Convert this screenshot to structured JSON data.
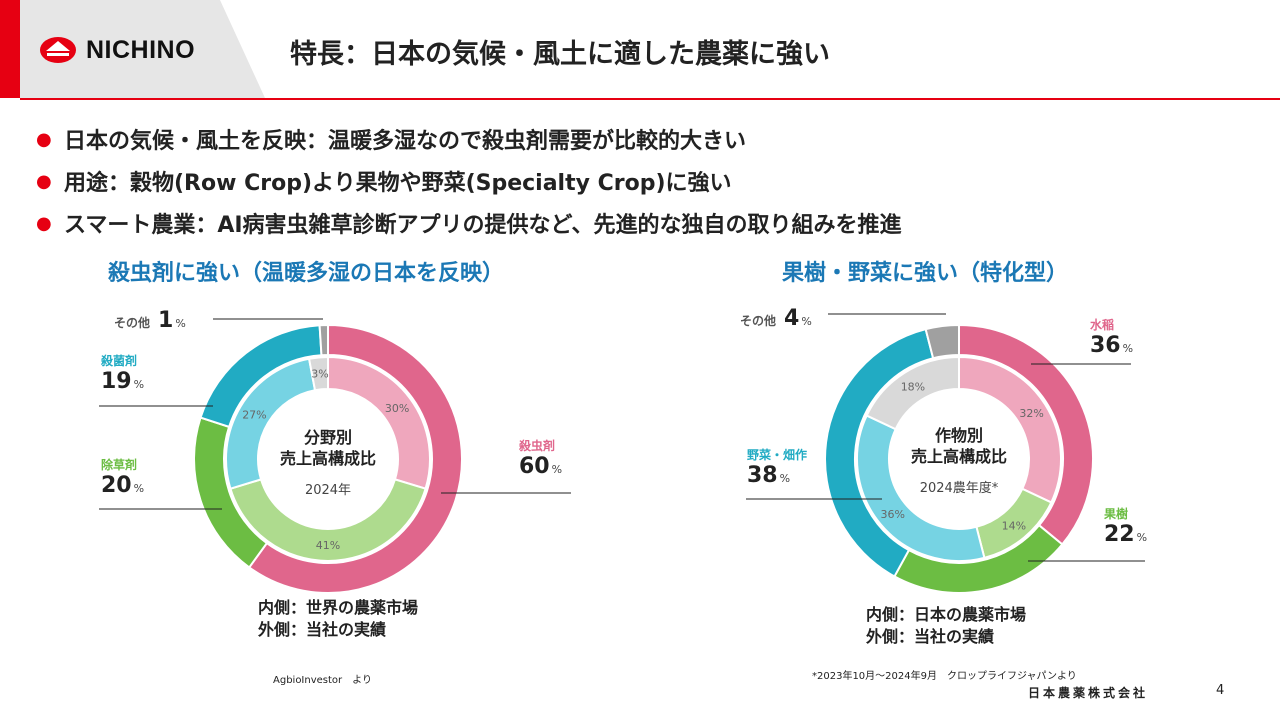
{
  "header": {
    "logo_text": "NICHINO",
    "title": "特長：日本の気候・風土に適した農薬に強い"
  },
  "bullets": [
    "日本の気候・風土を反映：温暖多湿なので殺虫剤需要が比較的大きい",
    "用途：穀物(Row Crop)より果物や野菜(Specialty Crop)に強い",
    "スマート農業：AI病害虫雑草診断アプリの提供など、先進的な独自の取り組みを推進"
  ],
  "bullet_marker": "●",
  "colors": {
    "brand_red": "#e60012",
    "title_blue": "#1b78b5",
    "pink": "#e0668c",
    "pink_light": "#efa7bd",
    "green": "#6cbd43",
    "green_light": "#aedb8e",
    "teal": "#21abc3",
    "teal_light": "#76d3e3",
    "gray": "#a0a0a0",
    "gray_light": "#d9d9d9"
  },
  "chart_data": [
    {
      "type": "pie",
      "variant": "nested-donut",
      "title": "殺虫剤に強い（温暖多湿の日本を反映）",
      "center_label_1": "分野別",
      "center_label_2": "売上高構成比",
      "center_sub": "2024年",
      "unit": "%",
      "outer": {
        "name": "当社の実績",
        "slices": [
          {
            "label": "殺虫剤",
            "value": 60,
            "color": "#e0668c",
            "text": "60"
          },
          {
            "label": "除草剤",
            "value": 20,
            "color": "#6cbd43",
            "text": "20"
          },
          {
            "label": "殺菌剤",
            "value": 19,
            "color": "#21abc3",
            "text": "19"
          },
          {
            "label": "その他",
            "value": 1,
            "color": "#a0a0a0",
            "text": "1"
          }
        ]
      },
      "inner": {
        "name": "世界の農薬市場",
        "slices": [
          {
            "label": "殺虫剤",
            "value": 30,
            "color": "#efa7bd",
            "text": "30%"
          },
          {
            "label": "除草剤",
            "value": 41,
            "color": "#aedb8e",
            "text": "41%"
          },
          {
            "label": "殺菌剤",
            "value": 27,
            "color": "#76d3e3",
            "text": "27%"
          },
          {
            "label": "その他",
            "value": 3,
            "color": "#d9d9d9",
            "text": "3%"
          }
        ]
      },
      "legend": [
        "内側：世界の農薬市場",
        "外側：当社の実績"
      ],
      "source": "AgbioInvestor　より"
    },
    {
      "type": "pie",
      "variant": "nested-donut",
      "title": "果樹・野菜に強い（特化型）",
      "center_label_1": "作物別",
      "center_label_2": "売上高構成比",
      "center_sub": "2024農年度*",
      "unit": "%",
      "outer": {
        "name": "当社の実績",
        "slices": [
          {
            "label": "水稲",
            "value": 36,
            "color": "#e0668c",
            "text": "36"
          },
          {
            "label": "果樹",
            "value": 22,
            "color": "#6cbd43",
            "text": "22"
          },
          {
            "label": "野菜・畑作",
            "value": 38,
            "color": "#21abc3",
            "text": "38"
          },
          {
            "label": "その他",
            "value": 4,
            "color": "#a0a0a0",
            "text": "4"
          }
        ]
      },
      "inner": {
        "name": "日本の農薬市場",
        "slices": [
          {
            "label": "水稲",
            "value": 32,
            "color": "#efa7bd",
            "text": "32%"
          },
          {
            "label": "果樹",
            "value": 14,
            "color": "#aedb8e",
            "text": "14%"
          },
          {
            "label": "野菜・畑作",
            "value": 36,
            "color": "#76d3e3",
            "text": "36%"
          },
          {
            "label": "その他",
            "value": 18,
            "color": "#d9d9d9",
            "text": "18%"
          }
        ]
      },
      "legend": [
        "内側：日本の農薬市場",
        "外側：当社の実績"
      ],
      "source": "*2023年10月～2024年9月　クロップライフジャパンより"
    }
  ],
  "footer": {
    "company": "日本農薬株式会社",
    "page_number": "4"
  }
}
